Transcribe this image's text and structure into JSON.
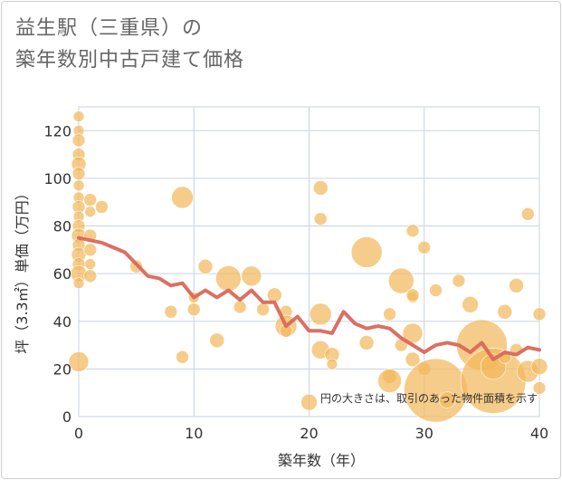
{
  "chart_data": {
    "type": "scatter",
    "title_line1": "益生駅（三重県）の",
    "title_line2": "築年数別中古戸建て価格",
    "xlabel": "築年数（年）",
    "ylabel": "坪（3.3㎡）単価（万円）",
    "annotation": "円の大きさは、取引のあった物件面積を示す",
    "xlim": [
      0,
      40
    ],
    "ylim": [
      0,
      130
    ],
    "x_ticks": [
      0,
      10,
      20,
      30,
      40
    ],
    "y_ticks": [
      0,
      20,
      40,
      60,
      80,
      100,
      120
    ],
    "grid": true,
    "colors": {
      "bubble": "#f2b85d",
      "line": "#d9685a",
      "grid": "#c9d3e0"
    },
    "bubbles": [
      {
        "x": 0,
        "y": 126,
        "r": 6
      },
      {
        "x": 0,
        "y": 120,
        "r": 6
      },
      {
        "x": 0,
        "y": 116,
        "r": 7
      },
      {
        "x": 0,
        "y": 110,
        "r": 7
      },
      {
        "x": 0,
        "y": 106,
        "r": 8
      },
      {
        "x": 0,
        "y": 102,
        "r": 7
      },
      {
        "x": 0,
        "y": 97,
        "r": 6
      },
      {
        "x": 0,
        "y": 92,
        "r": 6
      },
      {
        "x": 0,
        "y": 88,
        "r": 7
      },
      {
        "x": 0,
        "y": 84,
        "r": 6
      },
      {
        "x": 0,
        "y": 80,
        "r": 7
      },
      {
        "x": 0,
        "y": 76,
        "r": 8
      },
      {
        "x": 0,
        "y": 72,
        "r": 7
      },
      {
        "x": 0,
        "y": 68,
        "r": 8
      },
      {
        "x": 0,
        "y": 64,
        "r": 7
      },
      {
        "x": 0,
        "y": 60,
        "r": 9
      },
      {
        "x": 0,
        "y": 56,
        "r": 6
      },
      {
        "x": 0,
        "y": 23,
        "r": 11
      },
      {
        "x": 1,
        "y": 91,
        "r": 7
      },
      {
        "x": 1,
        "y": 86,
        "r": 6
      },
      {
        "x": 1,
        "y": 76,
        "r": 7
      },
      {
        "x": 1,
        "y": 70,
        "r": 7
      },
      {
        "x": 1,
        "y": 64,
        "r": 6
      },
      {
        "x": 1,
        "y": 59,
        "r": 7
      },
      {
        "x": 2,
        "y": 88,
        "r": 7
      },
      {
        "x": 5,
        "y": 63,
        "r": 7
      },
      {
        "x": 8,
        "y": 44,
        "r": 7
      },
      {
        "x": 9,
        "y": 92,
        "r": 12
      },
      {
        "x": 9,
        "y": 25,
        "r": 7
      },
      {
        "x": 10,
        "y": 45,
        "r": 7
      },
      {
        "x": 10,
        "y": 50,
        "r": 6
      },
      {
        "x": 11,
        "y": 63,
        "r": 8
      },
      {
        "x": 12,
        "y": 32,
        "r": 8
      },
      {
        "x": 13,
        "y": 58,
        "r": 14
      },
      {
        "x": 14,
        "y": 46,
        "r": 7
      },
      {
        "x": 15,
        "y": 59,
        "r": 11
      },
      {
        "x": 16,
        "y": 45,
        "r": 7
      },
      {
        "x": 17,
        "y": 51,
        "r": 8
      },
      {
        "x": 18,
        "y": 44,
        "r": 7
      },
      {
        "x": 18,
        "y": 38,
        "r": 12
      },
      {
        "x": 18,
        "y": 36,
        "r": 7
      },
      {
        "x": 20,
        "y": 6,
        "r": 9
      },
      {
        "x": 21,
        "y": 96,
        "r": 8
      },
      {
        "x": 21,
        "y": 83,
        "r": 7
      },
      {
        "x": 21,
        "y": 43,
        "r": 12
      },
      {
        "x": 21,
        "y": 28,
        "r": 10
      },
      {
        "x": 22,
        "y": 26,
        "r": 8
      },
      {
        "x": 22,
        "y": 22,
        "r": 6
      },
      {
        "x": 25,
        "y": 69,
        "r": 17
      },
      {
        "x": 25,
        "y": 31,
        "r": 8
      },
      {
        "x": 27,
        "y": 43,
        "r": 7
      },
      {
        "x": 27,
        "y": 17,
        "r": 8
      },
      {
        "x": 27,
        "y": 15,
        "r": 13
      },
      {
        "x": 28,
        "y": 57,
        "r": 14
      },
      {
        "x": 28,
        "y": 30,
        "r": 7
      },
      {
        "x": 29,
        "y": 78,
        "r": 7
      },
      {
        "x": 29,
        "y": 50,
        "r": 6
      },
      {
        "x": 29,
        "y": 51,
        "r": 7
      },
      {
        "x": 29,
        "y": 35,
        "r": 11
      },
      {
        "x": 29,
        "y": 24,
        "r": 8
      },
      {
        "x": 30,
        "y": 71,
        "r": 7
      },
      {
        "x": 30,
        "y": 20,
        "r": 7
      },
      {
        "x": 31,
        "y": 53,
        "r": 7
      },
      {
        "x": 31,
        "y": 11,
        "r": 35
      },
      {
        "x": 32,
        "y": 7,
        "r": 9
      },
      {
        "x": 33,
        "y": 57,
        "r": 7
      },
      {
        "x": 34,
        "y": 47,
        "r": 9
      },
      {
        "x": 35,
        "y": 30,
        "r": 28
      },
      {
        "x": 36,
        "y": 15,
        "r": 36
      },
      {
        "x": 36,
        "y": 21,
        "r": 14
      },
      {
        "x": 37,
        "y": 44,
        "r": 8
      },
      {
        "x": 37,
        "y": 25,
        "r": 7
      },
      {
        "x": 38,
        "y": 55,
        "r": 8
      },
      {
        "x": 38,
        "y": 28,
        "r": 7
      },
      {
        "x": 39,
        "y": 85,
        "r": 7
      },
      {
        "x": 39,
        "y": 19,
        "r": 12
      },
      {
        "x": 40,
        "y": 43,
        "r": 7
      },
      {
        "x": 40,
        "y": 21,
        "r": 9
      },
      {
        "x": 40,
        "y": 12,
        "r": 7
      }
    ],
    "average_line": {
      "x": [
        0,
        1,
        2,
        3,
        4,
        5,
        6,
        7,
        8,
        9,
        10,
        11,
        12,
        13,
        14,
        15,
        16,
        17,
        18,
        19,
        20,
        21,
        22,
        23,
        24,
        25,
        26,
        27,
        28,
        29,
        30,
        31,
        32,
        33,
        34,
        35,
        36,
        37,
        38,
        39,
        40
      ],
      "y": [
        75,
        74,
        73,
        71,
        69,
        64,
        59,
        58,
        55,
        56,
        50,
        53,
        50,
        53,
        49,
        53,
        48,
        48,
        38,
        42,
        36,
        36,
        35,
        44,
        39,
        37,
        38,
        37,
        33,
        30,
        27,
        30,
        31,
        30,
        27,
        31,
        24,
        27,
        26,
        29,
        28
      ]
    }
  }
}
